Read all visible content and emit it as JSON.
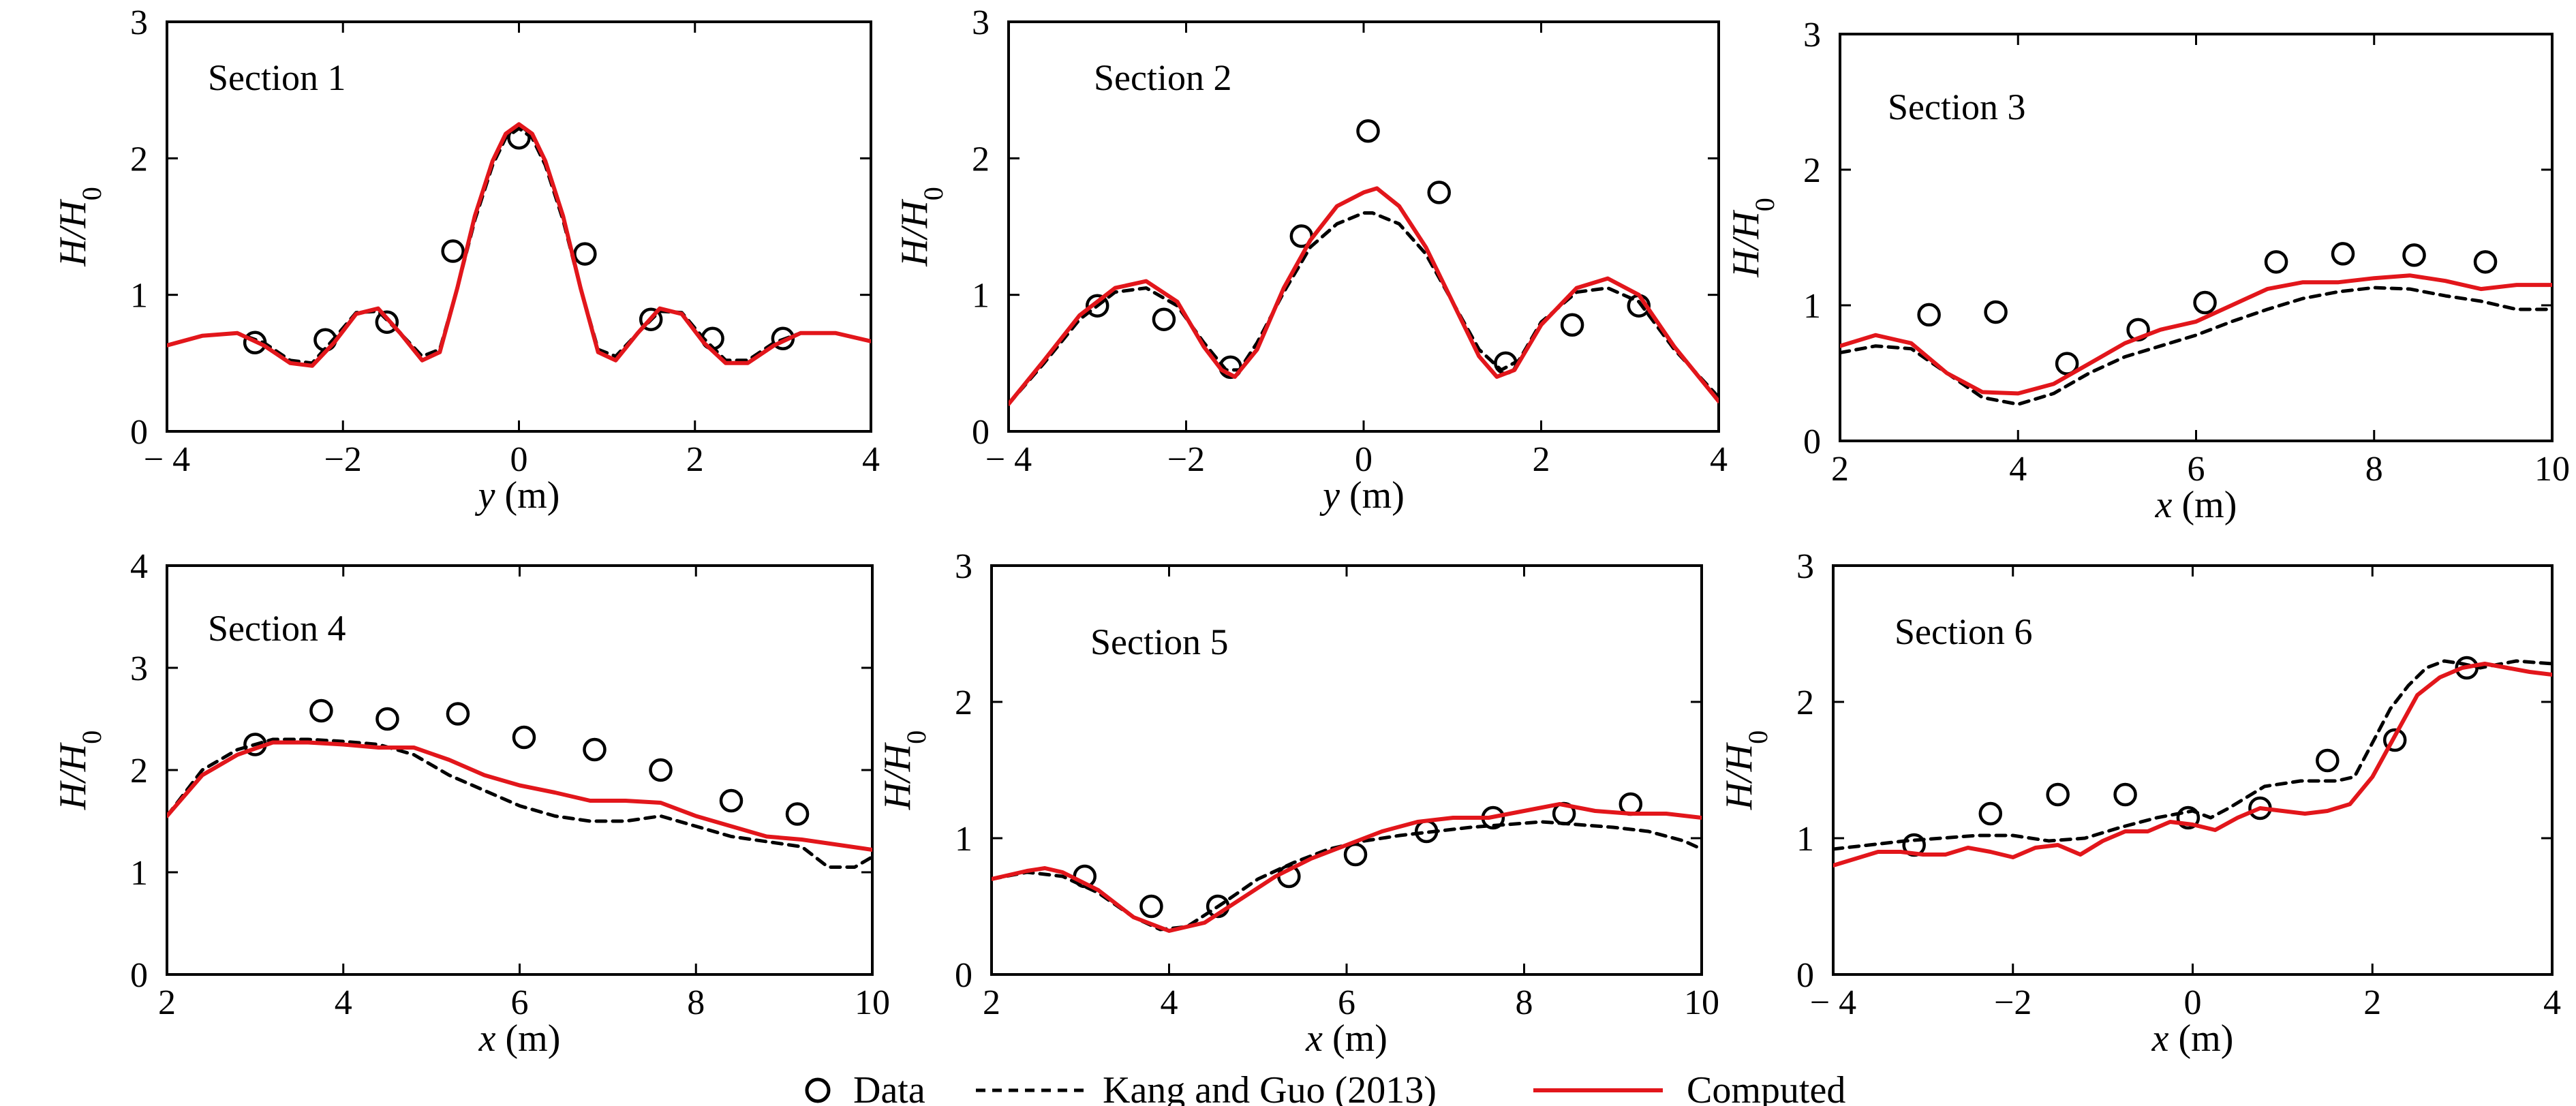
{
  "figure": {
    "colors": {
      "data": "#000000",
      "kang": "#000000",
      "computed": "#e2161b"
    },
    "legend": {
      "placement": "bottom-center",
      "data_label": "Data",
      "kang_label": "Kang and Guo (2013)",
      "computed_label": "Computed"
    }
  },
  "chart_data": [
    {
      "type": "line",
      "title": "Section 1",
      "xlabel_var": "y",
      "xlabel_unit": " (m)",
      "ylabel_var": "H/H",
      "ylabel_sub": "0",
      "xlim": [
        -4,
        4
      ],
      "ylim": [
        0,
        3
      ],
      "xticks": [
        -4,
        -2,
        0,
        2,
        4
      ],
      "xtick_labels": [
        "− 4",
        "−2",
        "0",
        "2",
        "4"
      ],
      "yticks": [
        0,
        1,
        2,
        3
      ],
      "ytick_labels": [
        "0",
        "1",
        "2",
        "3"
      ],
      "series": [
        {
          "name": "Data",
          "style": "markers",
          "x": [
            -3.0,
            -2.2,
            -1.5,
            -0.75,
            0.0,
            0.75,
            1.5,
            2.2,
            3.0
          ],
          "y": [
            0.65,
            0.67,
            0.8,
            1.32,
            2.15,
            1.3,
            0.82,
            0.68,
            0.68
          ]
        },
        {
          "name": "Kang and Guo (2013)",
          "style": "dashed",
          "x": [
            -4,
            -3.6,
            -3.2,
            -2.9,
            -2.6,
            -2.35,
            -2.1,
            -1.85,
            -1.6,
            -1.35,
            -1.1,
            -0.9,
            -0.7,
            -0.5,
            -0.3,
            -0.15,
            0.0,
            0.15,
            0.3,
            0.5,
            0.7,
            0.9,
            1.1,
            1.35,
            1.6,
            1.85,
            2.1,
            2.35,
            2.6,
            2.9,
            3.2,
            3.6,
            4
          ],
          "y": [
            0.63,
            0.7,
            0.72,
            0.65,
            0.52,
            0.5,
            0.68,
            0.87,
            0.88,
            0.72,
            0.55,
            0.6,
            1.05,
            1.55,
            1.95,
            2.15,
            2.22,
            2.15,
            1.95,
            1.55,
            1.05,
            0.6,
            0.55,
            0.72,
            0.88,
            0.87,
            0.68,
            0.52,
            0.52,
            0.65,
            0.72,
            0.72,
            0.66
          ]
        },
        {
          "name": "Computed",
          "style": "solid",
          "x": [
            -4,
            -3.6,
            -3.2,
            -2.9,
            -2.6,
            -2.35,
            -2.1,
            -1.85,
            -1.6,
            -1.35,
            -1.1,
            -0.9,
            -0.7,
            -0.5,
            -0.3,
            -0.15,
            0.0,
            0.15,
            0.3,
            0.5,
            0.7,
            0.9,
            1.1,
            1.35,
            1.6,
            1.85,
            2.1,
            2.35,
            2.6,
            2.9,
            3.2,
            3.6,
            4
          ],
          "y": [
            0.63,
            0.7,
            0.72,
            0.63,
            0.5,
            0.48,
            0.65,
            0.86,
            0.9,
            0.72,
            0.52,
            0.58,
            1.05,
            1.58,
            1.98,
            2.18,
            2.25,
            2.18,
            1.98,
            1.58,
            1.05,
            0.58,
            0.52,
            0.72,
            0.9,
            0.86,
            0.65,
            0.5,
            0.5,
            0.63,
            0.72,
            0.72,
            0.66
          ]
        }
      ]
    },
    {
      "type": "line",
      "title": "Section 2",
      "xlabel_var": "y",
      "xlabel_unit": " (m)",
      "ylabel_var": "H/H",
      "ylabel_sub": "0",
      "xlim": [
        -4,
        4
      ],
      "ylim": [
        0,
        3
      ],
      "xticks": [
        -4,
        -2,
        0,
        2,
        4
      ],
      "xtick_labels": [
        "− 4",
        "−2",
        "0",
        "2",
        "4"
      ],
      "yticks": [
        0,
        1,
        2,
        3
      ],
      "ytick_labels": [
        "0",
        "1",
        "2",
        "3"
      ],
      "series": [
        {
          "name": "Data",
          "style": "markers",
          "x": [
            -3.0,
            -2.25,
            -1.5,
            -0.7,
            0.05,
            0.85,
            1.6,
            2.35,
            3.1
          ],
          "y": [
            0.92,
            0.82,
            0.47,
            1.43,
            2.2,
            1.75,
            0.5,
            0.78,
            0.92
          ]
        },
        {
          "name": "Kang and Guo (2013)",
          "style": "dashed",
          "x": [
            -4,
            -3.6,
            -3.2,
            -2.8,
            -2.45,
            -2.1,
            -1.8,
            -1.55,
            -1.4,
            -1.2,
            -0.9,
            -0.6,
            -0.3,
            0.0,
            0.1,
            0.4,
            0.7,
            1.0,
            1.3,
            1.55,
            1.75,
            2.0,
            2.4,
            2.75,
            3.1,
            3.5,
            4
          ],
          "y": [
            0.2,
            0.5,
            0.82,
            1.02,
            1.05,
            0.92,
            0.65,
            0.45,
            0.45,
            0.65,
            1.02,
            1.35,
            1.52,
            1.6,
            1.6,
            1.52,
            1.3,
            0.95,
            0.6,
            0.45,
            0.52,
            0.8,
            1.02,
            1.05,
            0.95,
            0.6,
            0.25
          ]
        },
        {
          "name": "Computed",
          "style": "solid",
          "x": [
            -4,
            -3.6,
            -3.2,
            -2.8,
            -2.45,
            -2.1,
            -1.8,
            -1.6,
            -1.45,
            -1.2,
            -0.9,
            -0.6,
            -0.3,
            0.0,
            0.15,
            0.4,
            0.7,
            1.0,
            1.3,
            1.5,
            1.7,
            2.0,
            2.4,
            2.75,
            3.1,
            3.5,
            4
          ],
          "y": [
            0.2,
            0.52,
            0.85,
            1.05,
            1.1,
            0.95,
            0.62,
            0.45,
            0.4,
            0.6,
            1.05,
            1.4,
            1.65,
            1.75,
            1.78,
            1.65,
            1.35,
            0.95,
            0.55,
            0.4,
            0.45,
            0.78,
            1.05,
            1.12,
            1.0,
            0.62,
            0.22
          ]
        }
      ]
    },
    {
      "type": "line",
      "title": "Section 3",
      "xlabel_var": "x",
      "xlabel_unit": " (m)",
      "ylabel_var": "H/H",
      "ylabel_sub": "0",
      "xlim": [
        2,
        10
      ],
      "ylim": [
        0,
        3
      ],
      "xticks": [
        2,
        4,
        6,
        8,
        10
      ],
      "xtick_labels": [
        "2",
        "4",
        "6",
        "8",
        "10"
      ],
      "yticks": [
        0,
        1,
        2,
        3
      ],
      "ytick_labels": [
        "0",
        "1",
        "2",
        "3"
      ],
      "series": [
        {
          "name": "Data",
          "style": "markers",
          "x": [
            3.0,
            3.75,
            4.55,
            5.35,
            6.1,
            6.9,
            7.65,
            8.45,
            9.25
          ],
          "y": [
            0.93,
            0.95,
            0.57,
            0.82,
            1.02,
            1.32,
            1.38,
            1.37,
            1.32
          ]
        },
        {
          "name": "Kang and Guo (2013)",
          "style": "dashed",
          "x": [
            2.0,
            2.4,
            2.8,
            3.2,
            3.6,
            4.0,
            4.4,
            4.8,
            5.2,
            5.6,
            6.0,
            6.4,
            6.8,
            7.2,
            7.6,
            8.0,
            8.4,
            8.8,
            9.2,
            9.6,
            10.0
          ],
          "y": [
            0.65,
            0.7,
            0.68,
            0.5,
            0.32,
            0.27,
            0.35,
            0.5,
            0.62,
            0.7,
            0.78,
            0.88,
            0.97,
            1.05,
            1.1,
            1.13,
            1.12,
            1.07,
            1.03,
            0.97,
            0.97
          ]
        },
        {
          "name": "Computed",
          "style": "solid",
          "x": [
            2.0,
            2.4,
            2.8,
            3.2,
            3.6,
            4.0,
            4.4,
            4.8,
            5.2,
            5.6,
            6.0,
            6.4,
            6.8,
            7.2,
            7.6,
            8.0,
            8.4,
            8.8,
            9.2,
            9.6,
            10.0
          ],
          "y": [
            0.7,
            0.78,
            0.72,
            0.5,
            0.36,
            0.35,
            0.42,
            0.57,
            0.72,
            0.82,
            0.88,
            1.0,
            1.12,
            1.17,
            1.17,
            1.2,
            1.22,
            1.18,
            1.12,
            1.15,
            1.15
          ]
        }
      ]
    },
    {
      "type": "line",
      "title": "Section 4",
      "xlabel_var": "x",
      "xlabel_unit": " (m)",
      "ylabel_var": "H/H",
      "ylabel_sub": "0",
      "xlim": [
        2,
        10
      ],
      "ylim": [
        0,
        4
      ],
      "xticks": [
        2,
        4,
        6,
        8,
        10
      ],
      "xtick_labels": [
        "2",
        "4",
        "6",
        "8",
        "10"
      ],
      "yticks": [
        0,
        1,
        2,
        3,
        4
      ],
      "ytick_labels": [
        "0",
        "1",
        "2",
        "3",
        "4"
      ],
      "series": [
        {
          "name": "Data",
          "style": "markers",
          "x": [
            3.0,
            3.75,
            4.5,
            5.3,
            6.05,
            6.85,
            7.6,
            8.4,
            9.15
          ],
          "y": [
            2.25,
            2.58,
            2.5,
            2.55,
            2.32,
            2.2,
            2.0,
            1.7,
            1.57
          ]
        },
        {
          "name": "Kang and Guo (2013)",
          "style": "dashed",
          "x": [
            2.0,
            2.4,
            2.8,
            3.2,
            3.6,
            4.0,
            4.4,
            4.8,
            5.2,
            5.6,
            6.0,
            6.4,
            6.8,
            7.2,
            7.6,
            8.0,
            8.4,
            8.8,
            9.2,
            9.5,
            9.8,
            10.0
          ],
          "y": [
            1.55,
            2.0,
            2.2,
            2.3,
            2.3,
            2.28,
            2.25,
            2.15,
            1.95,
            1.8,
            1.65,
            1.55,
            1.5,
            1.5,
            1.55,
            1.45,
            1.35,
            1.3,
            1.25,
            1.05,
            1.05,
            1.15
          ]
        },
        {
          "name": "Computed",
          "style": "solid",
          "x": [
            2.0,
            2.4,
            2.8,
            3.2,
            3.6,
            4.0,
            4.4,
            4.8,
            5.2,
            5.6,
            6.0,
            6.4,
            6.8,
            7.2,
            7.6,
            8.0,
            8.4,
            8.8,
            9.2,
            9.6,
            10.0
          ],
          "y": [
            1.55,
            1.95,
            2.15,
            2.27,
            2.27,
            2.25,
            2.22,
            2.22,
            2.1,
            1.95,
            1.85,
            1.78,
            1.7,
            1.7,
            1.68,
            1.55,
            1.45,
            1.35,
            1.32,
            1.27,
            1.22
          ]
        }
      ]
    },
    {
      "type": "line",
      "title": "Section 5",
      "xlabel_var": "x",
      "xlabel_unit": " (m)",
      "ylabel_var": "H/H",
      "ylabel_sub": "0",
      "xlim": [
        2,
        10
      ],
      "ylim": [
        0,
        3
      ],
      "xticks": [
        2,
        4,
        6,
        8,
        10
      ],
      "xtick_labels": [
        "2",
        "4",
        "6",
        "8",
        "10"
      ],
      "yticks": [
        0,
        1,
        2,
        3
      ],
      "ytick_labels": [
        "0",
        "1",
        "2",
        "3"
      ],
      "series": [
        {
          "name": "Data",
          "style": "markers",
          "x": [
            3.05,
            3.8,
            4.55,
            5.35,
            6.1,
            6.9,
            7.65,
            8.45,
            9.2
          ],
          "y": [
            0.72,
            0.5,
            0.5,
            0.72,
            0.88,
            1.05,
            1.15,
            1.18,
            1.25
          ]
        },
        {
          "name": "Kang and Guo (2013)",
          "style": "dashed",
          "x": [
            2.0,
            2.4,
            2.8,
            3.2,
            3.6,
            3.9,
            4.2,
            4.6,
            5.0,
            5.4,
            5.8,
            6.2,
            6.6,
            7.0,
            7.4,
            7.8,
            8.2,
            8.6,
            9.0,
            9.4,
            9.8,
            10.0
          ],
          "y": [
            0.7,
            0.75,
            0.72,
            0.6,
            0.42,
            0.33,
            0.35,
            0.52,
            0.7,
            0.82,
            0.92,
            0.98,
            1.02,
            1.05,
            1.08,
            1.1,
            1.12,
            1.1,
            1.08,
            1.05,
            0.98,
            0.92
          ]
        },
        {
          "name": "Computed",
          "style": "solid",
          "x": [
            2.0,
            2.4,
            2.6,
            2.8,
            3.2,
            3.6,
            4.0,
            4.4,
            4.8,
            5.2,
            5.6,
            6.0,
            6.4,
            6.8,
            7.2,
            7.6,
            8.0,
            8.4,
            8.8,
            9.2,
            9.6,
            10.0
          ],
          "y": [
            0.7,
            0.76,
            0.78,
            0.75,
            0.62,
            0.42,
            0.32,
            0.38,
            0.55,
            0.72,
            0.85,
            0.95,
            1.05,
            1.12,
            1.15,
            1.15,
            1.2,
            1.25,
            1.2,
            1.18,
            1.18,
            1.15
          ]
        }
      ]
    },
    {
      "type": "line",
      "title": "Section 6",
      "xlabel_var": "x",
      "xlabel_unit": " (m)",
      "ylabel_var": "H/H",
      "ylabel_sub": "0",
      "xlim": [
        -4,
        4
      ],
      "ylim": [
        0,
        3
      ],
      "xticks": [
        -4,
        -2,
        0,
        2,
        4
      ],
      "xtick_labels": [
        "− 4",
        "−2",
        "0",
        "2",
        "4"
      ],
      "yticks": [
        0,
        1,
        2,
        3
      ],
      "ytick_labels": [
        "0",
        "1",
        "2",
        "3"
      ],
      "series": [
        {
          "name": "Data",
          "style": "markers",
          "x": [
            -3.1,
            -2.25,
            -1.5,
            -0.75,
            -0.05,
            0.75,
            1.5,
            2.25,
            3.05
          ],
          "y": [
            0.95,
            1.18,
            1.32,
            1.32,
            1.15,
            1.22,
            1.57,
            1.72,
            2.25
          ]
        },
        {
          "name": "Kang and Guo (2013)",
          "style": "dashed",
          "x": [
            -4.0,
            -3.6,
            -3.2,
            -2.8,
            -2.4,
            -2.0,
            -1.6,
            -1.2,
            -0.8,
            -0.4,
            0.0,
            0.2,
            0.4,
            0.8,
            1.2,
            1.6,
            1.8,
            2.0,
            2.2,
            2.4,
            2.6,
            2.8,
            3.0,
            3.2,
            3.6,
            4.0
          ],
          "y": [
            0.92,
            0.95,
            0.98,
            1.0,
            1.02,
            1.02,
            0.98,
            1.0,
            1.08,
            1.15,
            1.2,
            1.15,
            1.22,
            1.38,
            1.42,
            1.42,
            1.45,
            1.7,
            1.95,
            2.12,
            2.25,
            2.3,
            2.28,
            2.25,
            2.3,
            2.28
          ]
        },
        {
          "name": "Computed",
          "style": "solid",
          "x": [
            -4.0,
            -3.75,
            -3.5,
            -3.25,
            -3.0,
            -2.75,
            -2.5,
            -2.25,
            -2.0,
            -1.75,
            -1.5,
            -1.25,
            -1.0,
            -0.75,
            -0.5,
            -0.25,
            0.0,
            0.25,
            0.5,
            0.75,
            1.0,
            1.25,
            1.5,
            1.75,
            2.0,
            2.25,
            2.5,
            2.75,
            3.0,
            3.25,
            3.5,
            3.75,
            4.0
          ],
          "y": [
            0.8,
            0.85,
            0.9,
            0.9,
            0.88,
            0.88,
            0.93,
            0.9,
            0.86,
            0.93,
            0.95,
            0.88,
            0.98,
            1.05,
            1.05,
            1.12,
            1.1,
            1.06,
            1.15,
            1.22,
            1.2,
            1.18,
            1.2,
            1.25,
            1.45,
            1.75,
            2.05,
            2.18,
            2.25,
            2.28,
            2.25,
            2.22,
            2.2
          ]
        }
      ]
    }
  ]
}
